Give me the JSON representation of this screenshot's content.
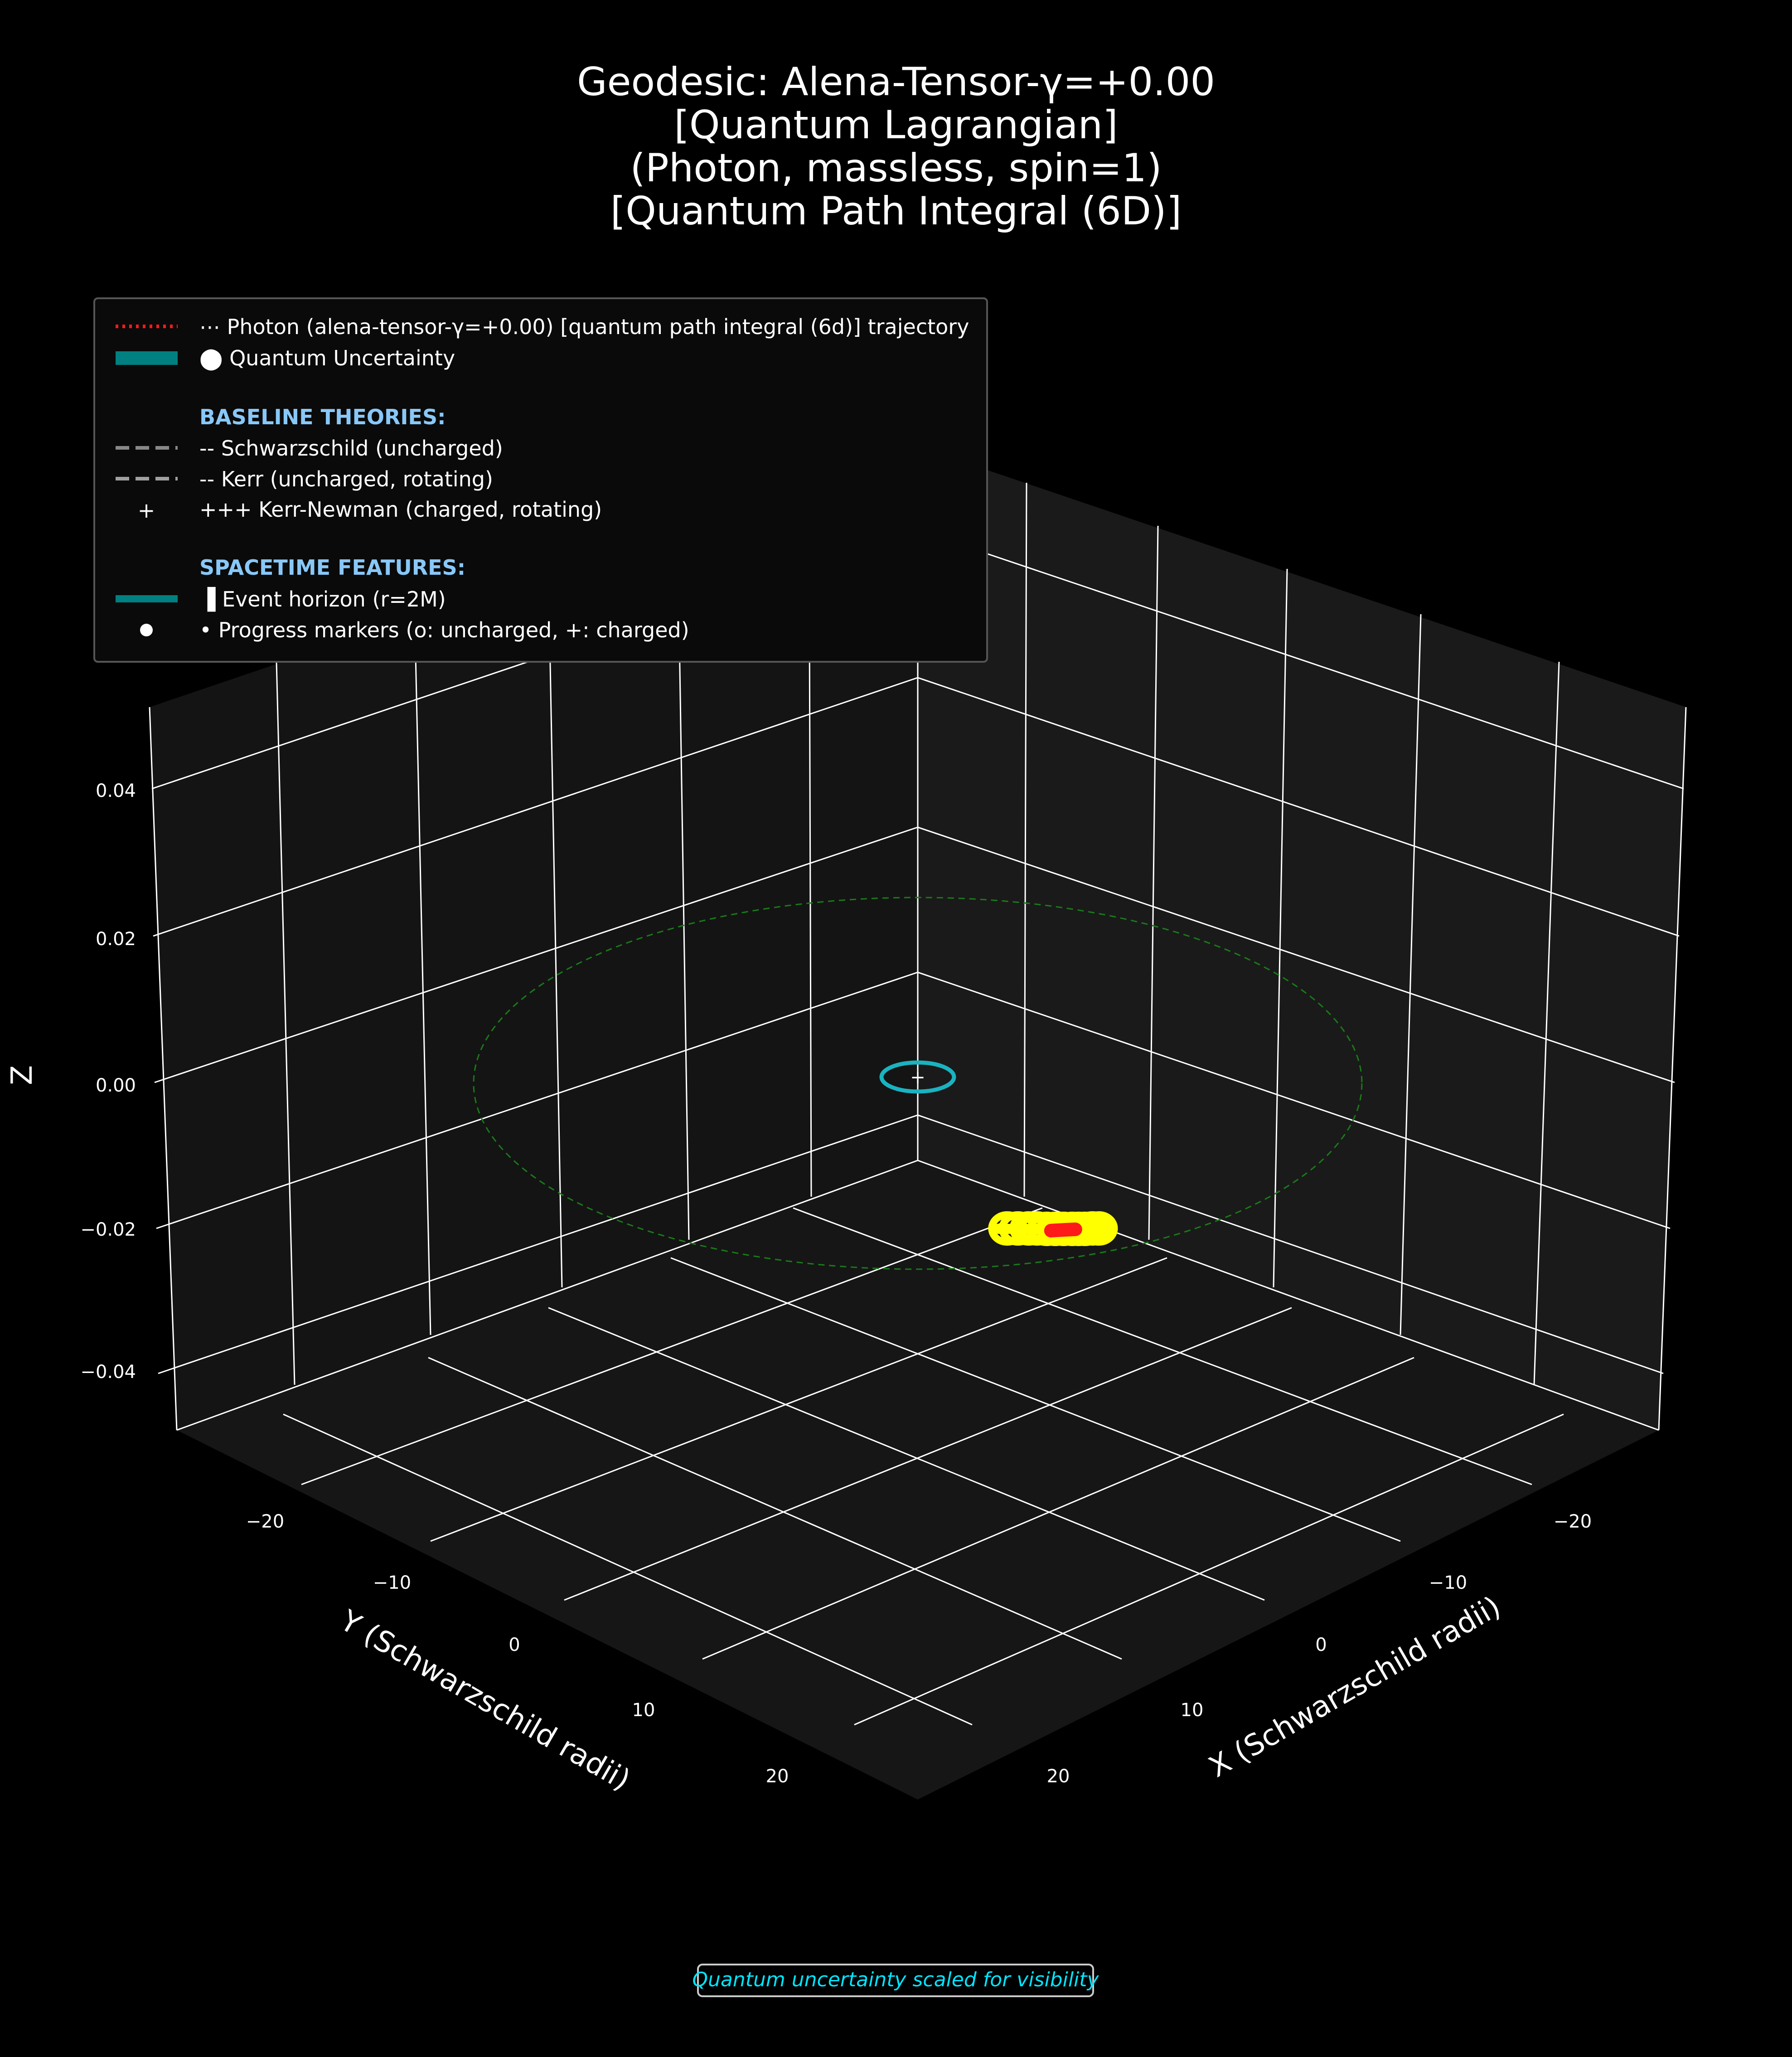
{
  "title_lines": [
    "Geodesic: Alena-Tensor-γ=+0.00",
    "[Quantum Lagrangian]",
    "(Photon, massless, spin=1)",
    "[Quantum Path Integral (6D)]"
  ],
  "legend": {
    "trajectory": "⋯ Photon (alena-tensor-γ=+0.00) [quantum path integral (6d)] trajectory",
    "uncertainty": "⬤ Quantum Uncertainty",
    "baseline_header": "BASELINE THEORIES:",
    "schwarzschild": "-- Schwarzschild (uncharged)",
    "kerr": "-- Kerr (uncharged, rotating)",
    "plus_marker": "+",
    "kerr_newman": "+++ Kerr-Newman (charged, rotating)",
    "features_header": "SPACETIME FEATURES:",
    "horizon": "▐ Event horizon (r=2M)",
    "progress": "• Progress markers (o: uncharged, +: charged)"
  },
  "note": "Quantum uncertainty scaled for visibility",
  "colors": {
    "background": "#000000",
    "pane": "#141414",
    "trajectory": "#ff1a1a",
    "uncertainty": "#008080",
    "horizon": "#1ab3c0",
    "photon_sphere": "#1a7a1a",
    "yellow_markers": "#ffff00",
    "legend_header": "#88c8f8",
    "note_text": "#00e5ff"
  },
  "chart_data": {
    "type": "scatter",
    "projection": "3d",
    "xlabel": "X (Schwarzschild radii)",
    "ylabel": "Y (Schwarzschild radii)",
    "zlabel": "Z",
    "x_ticks": [
      "−20",
      "−10",
      "0",
      "10",
      "20"
    ],
    "y_ticks": [
      "−20",
      "−10",
      "0",
      "10",
      "20"
    ],
    "z_ticks": [
      "0.04",
      "0.02",
      "0.00",
      "−0.02",
      "−0.04"
    ],
    "xlim": [
      -25,
      25
    ],
    "ylim": [
      -25,
      25
    ],
    "zlim": [
      -0.05,
      0.05
    ],
    "grid": true,
    "legend_position": "upper-left",
    "event_horizon_radius": 2,
    "photon_sphere_radius": 15,
    "trajectory": {
      "x": [
        -3.6,
        -4.4,
        -4.9
      ],
      "y": [
        8.9,
        9.5,
        9.9
      ],
      "z": [
        -0.018,
        -0.018,
        -0.018
      ]
    },
    "progress_marker_points": {
      "x": [
        -1.8,
        -2.3,
        -2.8,
        -3.2,
        -3.6,
        -4.0,
        -4.4,
        -4.8,
        -5.1,
        -5.4,
        -5.8,
        -6.1
      ],
      "y": [
        6.6,
        7.1,
        7.6,
        8.0,
        8.5,
        8.9,
        9.3,
        9.7,
        10.0,
        10.3,
        10.6,
        10.9
      ],
      "z": [
        -0.018,
        -0.018,
        -0.018,
        -0.018,
        -0.018,
        -0.018,
        -0.018,
        -0.018,
        -0.018,
        -0.018,
        -0.018,
        -0.018
      ]
    },
    "center_marker": {
      "x": 0,
      "y": 0,
      "z": 0,
      "label": "+"
    }
  }
}
